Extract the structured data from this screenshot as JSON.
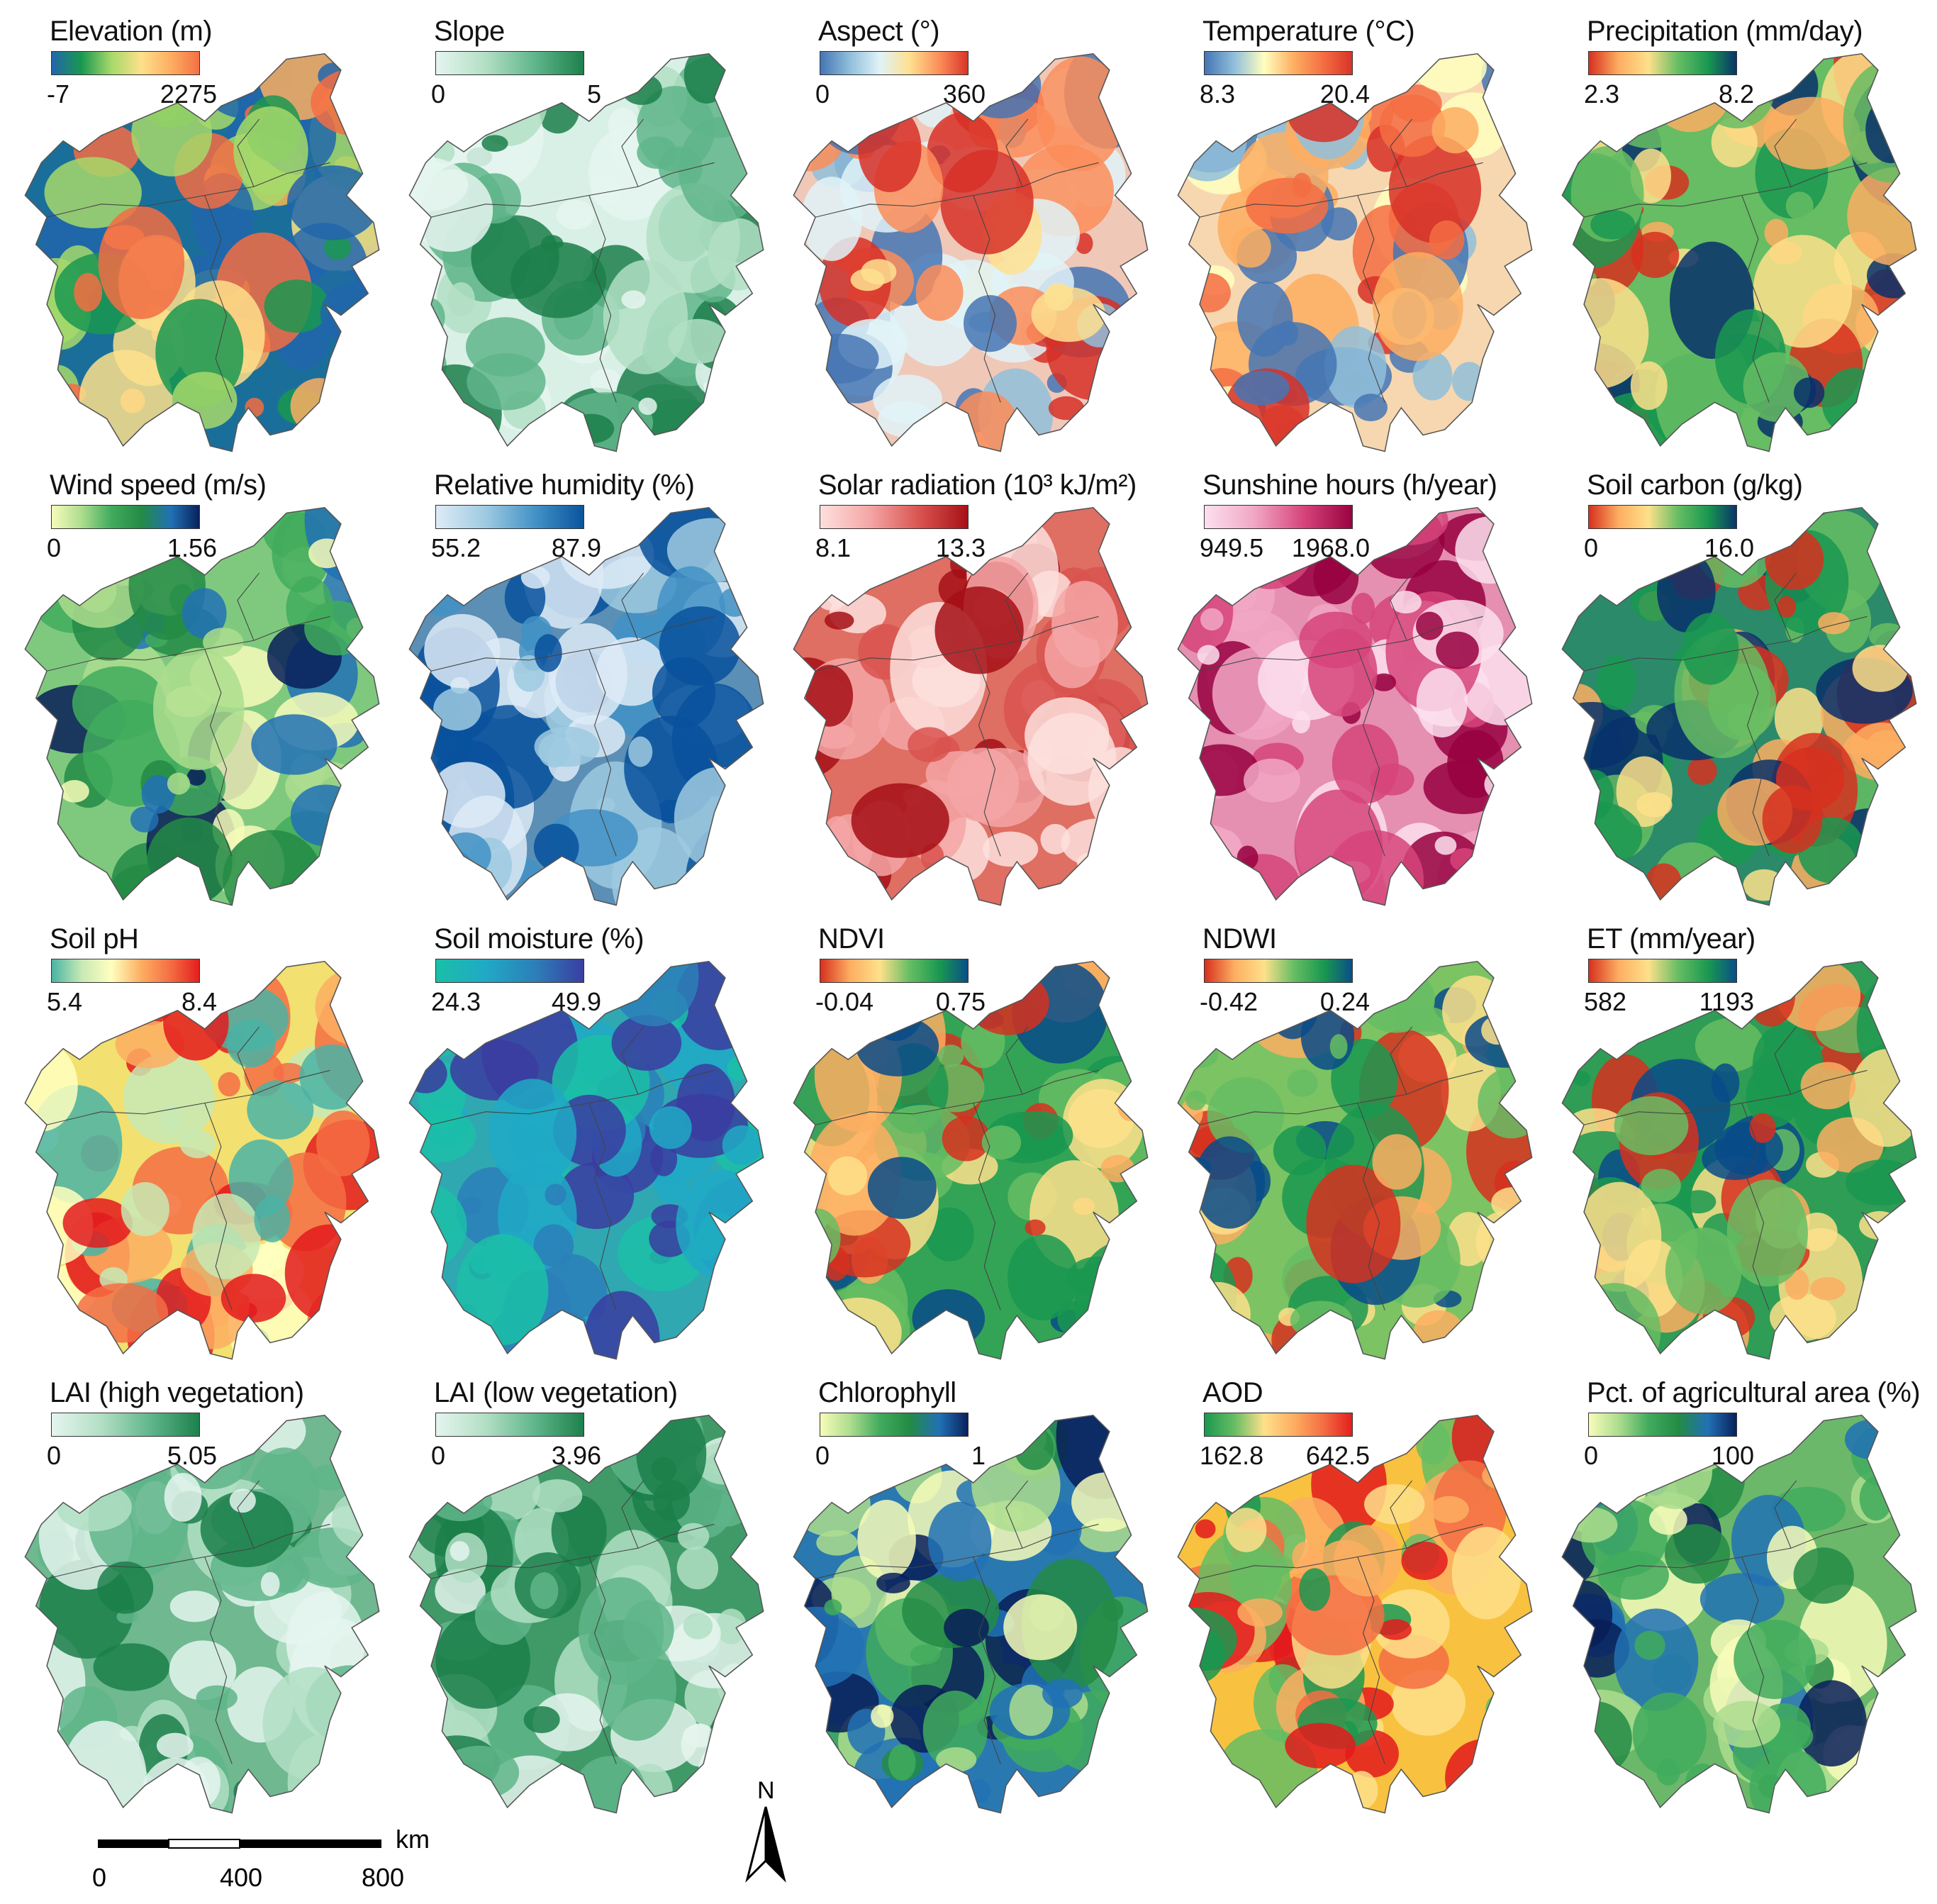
{
  "panels": [
    {
      "title": "Elevation (m)",
      "min": "-7",
      "max": "2275",
      "colors": [
        "#2166ac",
        "#1a9850",
        "#a6d96a",
        "#fee08b",
        "#fdae61",
        "#f46d43"
      ],
      "bg": "#1a6f9a"
    },
    {
      "title": "Slope",
      "min": "0",
      "max": "5",
      "colors": [
        "#e5f5ef",
        "#b2dfc4",
        "#5fb58a",
        "#1b7f4a"
      ],
      "bg": "#d9f0e6"
    },
    {
      "title": "Aspect (°)",
      "min": "0",
      "max": "360",
      "colors": [
        "#4575b4",
        "#91bfdb",
        "#e0f3f8",
        "#fee090",
        "#fc8d59",
        "#d73027"
      ],
      "bg": "#f0c8b8"
    },
    {
      "title": "Temperature (°C)",
      "min": "8.3",
      "max": "20.4",
      "colors": [
        "#4575b4",
        "#91bfdb",
        "#ffffbf",
        "#fdae61",
        "#f46d43",
        "#d73027"
      ],
      "bg": "#f7d7b0"
    },
    {
      "title": "Precipitation (mm/day)",
      "min": "2.3",
      "max": "8.2",
      "colors": [
        "#d7301f",
        "#fdae61",
        "#fee08b",
        "#66bd63",
        "#1a9850",
        "#08306b"
      ],
      "bg": "#66bd63"
    },
    {
      "title": "Wind speed (m/s)",
      "min": "0",
      "max": "1.56",
      "colors": [
        "#f7fcb9",
        "#addd8e",
        "#41ab5d",
        "#238b45",
        "#2171b5",
        "#081d58"
      ],
      "bg": "#7fc97f"
    },
    {
      "title": "Relative humidity (%)",
      "min": "55.2",
      "max": "87.9",
      "colors": [
        "#deebf7",
        "#9ecae1",
        "#4292c6",
        "#08519c"
      ],
      "bg": "#5b8fb5"
    },
    {
      "title": "Solar radiation (10³ kJ/m²)",
      "min": "8.1",
      "max": "13.3",
      "colors": [
        "#fde0dd",
        "#f4a6a6",
        "#d9534f",
        "#a50f15"
      ],
      "bg": "#df6e63"
    },
    {
      "title": "Sunshine hours (h/year)",
      "min": "949.5",
      "max": "1968.0",
      "colors": [
        "#fde0ef",
        "#f1a7c4",
        "#d6447a",
        "#98003f"
      ],
      "bg": "#e58fb1"
    },
    {
      "title": "Soil carbon (g/kg)",
      "min": "0",
      "max": "16.0",
      "colors": [
        "#d7301f",
        "#fdae61",
        "#fee08b",
        "#66bd63",
        "#1a9850",
        "#08306b"
      ],
      "bg": "#2b8a6a"
    },
    {
      "title": "Soil pH",
      "min": "5.4",
      "max": "8.4",
      "colors": [
        "#4ab3a4",
        "#c7e9b4",
        "#ffffbf",
        "#fdae61",
        "#f46d43",
        "#e31a1c"
      ],
      "bg": "#f2e070"
    },
    {
      "title": "Soil moisture (%)",
      "min": "24.3",
      "max": "49.9",
      "colors": [
        "#1bbfa7",
        "#20a9c6",
        "#2c7fb8",
        "#3a3ca0"
      ],
      "bg": "#2fa8b2"
    },
    {
      "title": "NDVI",
      "min": "-0.04",
      "max": "0.75",
      "colors": [
        "#d7301f",
        "#fdae61",
        "#fee08b",
        "#66bd63",
        "#1a9850",
        "#084b8a"
      ],
      "bg": "#33a456"
    },
    {
      "title": "NDWI",
      "min": "-0.42",
      "max": "0.24",
      "colors": [
        "#d7301f",
        "#fdae61",
        "#fee08b",
        "#66bd63",
        "#1a9850",
        "#084b8a"
      ],
      "bg": "#7cc363"
    },
    {
      "title": "ET (mm/year)",
      "min": "582",
      "max": "1193",
      "colors": [
        "#d7301f",
        "#fdae61",
        "#fee08b",
        "#66bd63",
        "#1a9850",
        "#084b8a"
      ],
      "bg": "#2f9d55"
    },
    {
      "title": "LAI (high vegetation)",
      "min": "0",
      "max": "5.05",
      "colors": [
        "#e5f5ef",
        "#b2dfc4",
        "#5fb58a",
        "#1b7f4a"
      ],
      "bg": "#6fb890"
    },
    {
      "title": "LAI (low vegetation)",
      "min": "0",
      "max": "3.96",
      "colors": [
        "#e5f5ef",
        "#b2dfc4",
        "#5fb58a",
        "#1b7f4a"
      ],
      "bg": "#3f9a68"
    },
    {
      "title": "Chlorophyll",
      "min": "0",
      "max": "1",
      "colors": [
        "#f7fcb9",
        "#addd8e",
        "#41ab5d",
        "#238b45",
        "#2171b5",
        "#081d58"
      ],
      "bg": "#2a78b0"
    },
    {
      "title": "AOD",
      "min": "162.8",
      "max": "642.5",
      "colors": [
        "#1a9850",
        "#66bd63",
        "#fee08b",
        "#fdae61",
        "#f46d43",
        "#e31a1c"
      ],
      "bg": "#f8c240"
    },
    {
      "title": "Pct. of agricultural area (%)",
      "min": "0",
      "max": "100",
      "colors": [
        "#f7fcb9",
        "#addd8e",
        "#41ab5d",
        "#238b45",
        "#2171b5",
        "#081d58"
      ],
      "bg": "#6bb86a"
    }
  ],
  "scale_bar": {
    "unit": "km",
    "ticks": [
      "0",
      "400",
      "800"
    ]
  },
  "north_arrow": {
    "label": "N"
  }
}
